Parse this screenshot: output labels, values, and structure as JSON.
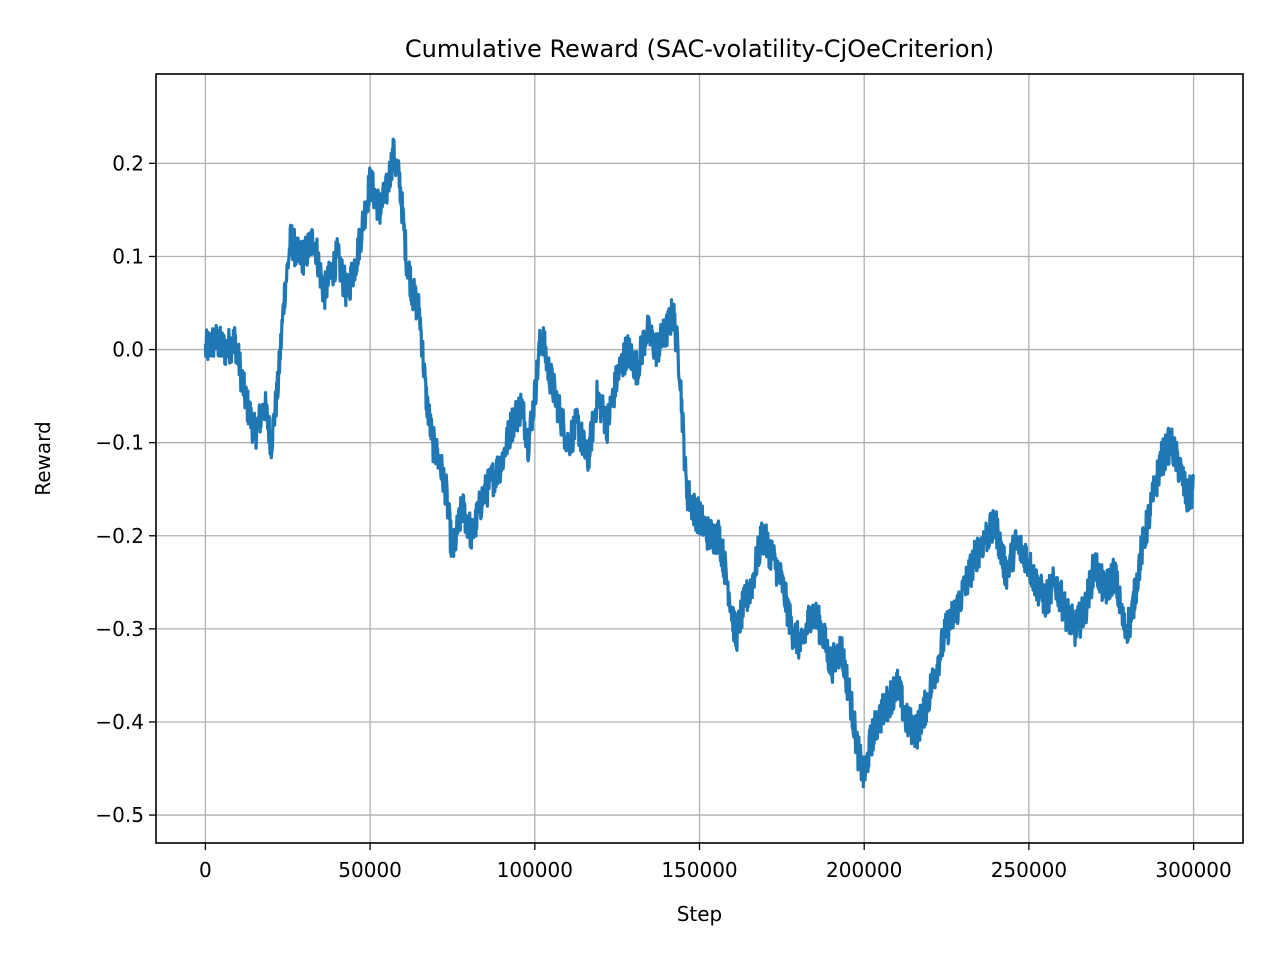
{
  "chart_data": {
    "type": "line",
    "title": "Cumulative Reward (SAC-volatility-CjOeCriterion)",
    "xlabel": "Step",
    "ylabel": "Reward",
    "xlim": [
      -15000,
      315000
    ],
    "ylim": [
      -0.53,
      0.296
    ],
    "grid": true,
    "xticks": [
      0,
      50000,
      100000,
      150000,
      200000,
      250000,
      300000
    ],
    "xtick_labels": [
      "0",
      "50000",
      "100000",
      "150000",
      "200000",
      "250000",
      "300000"
    ],
    "yticks": [
      0.2,
      0.1,
      0.0,
      -0.1,
      -0.2,
      -0.3,
      -0.4,
      -0.5
    ],
    "ytick_labels": [
      "0.2",
      "0.1",
      "0.0",
      "−0.1",
      "−0.2",
      "−0.3",
      "−0.4",
      "−0.5"
    ],
    "series": [
      {
        "color": "#1f77b4",
        "noise_amplitude": 0.02,
        "x": [
          0,
          3000,
          6000,
          9000,
          12000,
          15000,
          18000,
          20000,
          22000,
          24000,
          26000,
          28000,
          30000,
          33000,
          36000,
          38000,
          40000,
          43000,
          46000,
          48000,
          50000,
          53000,
          55000,
          57000,
          59000,
          61000,
          63000,
          65000,
          67000,
          69000,
          71000,
          73000,
          75000,
          78000,
          81000,
          84000,
          87000,
          90000,
          93000,
          96000,
          98000,
          100000,
          102000,
          104000,
          107000,
          110000,
          113000,
          116000,
          119000,
          122000,
          125000,
          128000,
          131000,
          134000,
          137000,
          140000,
          142000,
          144000,
          146000,
          148000,
          150000,
          153000,
          156000,
          159000,
          161000,
          163000,
          166000,
          169000,
          172000,
          175000,
          178000,
          181000,
          184000,
          187000,
          190000,
          193000,
          196000,
          198000,
          200000,
          202000,
          204000,
          207000,
          210000,
          213000,
          216000,
          219000,
          222000,
          225000,
          228000,
          231000,
          234000,
          237000,
          240000,
          243000,
          246000,
          249000,
          252000,
          255000,
          258000,
          261000,
          264000,
          267000,
          270000,
          273000,
          276000,
          279000,
          281000,
          284000,
          287000,
          290000,
          293000,
          296000,
          298000,
          300000
        ],
        "y": [
          0.0,
          0.01,
          0.0,
          0.01,
          -0.05,
          -0.09,
          -0.06,
          -0.1,
          -0.04,
          0.06,
          0.12,
          0.1,
          0.1,
          0.12,
          0.06,
          0.08,
          0.1,
          0.06,
          0.1,
          0.14,
          0.18,
          0.15,
          0.17,
          0.21,
          0.18,
          0.1,
          0.06,
          0.04,
          -0.05,
          -0.1,
          -0.12,
          -0.15,
          -0.22,
          -0.17,
          -0.2,
          -0.16,
          -0.14,
          -0.12,
          -0.08,
          -0.06,
          -0.1,
          -0.05,
          0.02,
          -0.02,
          -0.06,
          -0.1,
          -0.08,
          -0.12,
          -0.05,
          -0.08,
          -0.03,
          0.0,
          -0.02,
          0.02,
          0.0,
          0.02,
          0.04,
          -0.02,
          -0.15,
          -0.17,
          -0.18,
          -0.2,
          -0.2,
          -0.26,
          -0.31,
          -0.28,
          -0.25,
          -0.2,
          -0.22,
          -0.25,
          -0.3,
          -0.32,
          -0.28,
          -0.3,
          -0.34,
          -0.32,
          -0.38,
          -0.43,
          -0.46,
          -0.42,
          -0.4,
          -0.38,
          -0.36,
          -0.4,
          -0.41,
          -0.38,
          -0.34,
          -0.3,
          -0.28,
          -0.25,
          -0.22,
          -0.2,
          -0.19,
          -0.24,
          -0.21,
          -0.22,
          -0.25,
          -0.27,
          -0.25,
          -0.28,
          -0.3,
          -0.28,
          -0.23,
          -0.26,
          -0.24,
          -0.3,
          -0.29,
          -0.22,
          -0.17,
          -0.12,
          -0.1,
          -0.13,
          -0.16,
          -0.15
        ]
      }
    ]
  }
}
